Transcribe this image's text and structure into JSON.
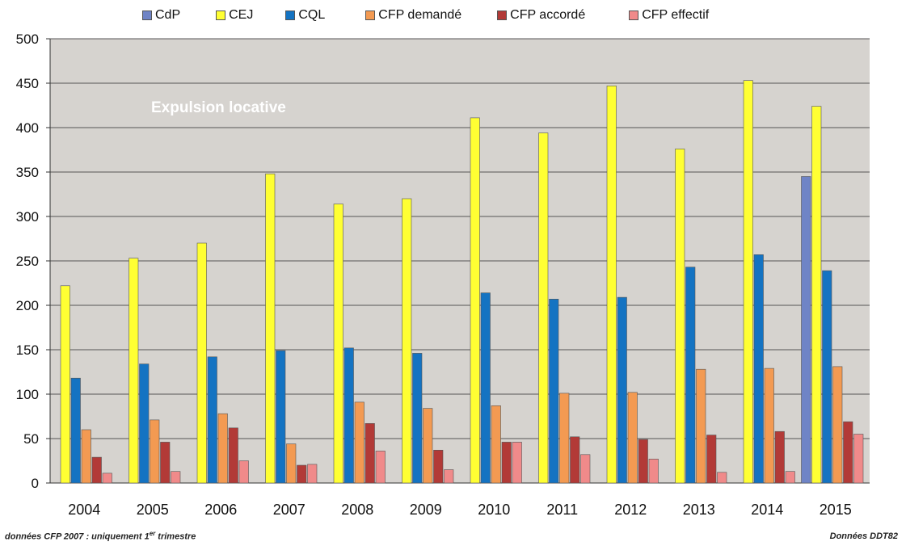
{
  "chart_data": {
    "type": "bar",
    "title": "",
    "annotation": "Expulsion locative",
    "xlabel": "",
    "ylabel": "",
    "ylim": [
      0,
      500
    ],
    "yticks": [
      0,
      50,
      100,
      150,
      200,
      250,
      300,
      350,
      400,
      450,
      500
    ],
    "grid": true,
    "legend_position": "top",
    "categories": [
      "2004",
      "2005",
      "2006",
      "2007",
      "2008",
      "2009",
      "2010",
      "2011",
      "2012",
      "2013",
      "2014",
      "2015"
    ],
    "series": [
      {
        "name": "CdP",
        "color": "#6f84c6",
        "values": [
          null,
          null,
          null,
          null,
          null,
          null,
          null,
          null,
          null,
          null,
          null,
          345
        ]
      },
      {
        "name": "CEJ",
        "color": "#ffff33",
        "values": [
          222,
          253,
          270,
          348,
          314,
          320,
          411,
          394,
          447,
          376,
          453,
          424
        ]
      },
      {
        "name": "CQL",
        "color": "#1473c2",
        "values": [
          118,
          134,
          142,
          149,
          152,
          146,
          214,
          207,
          209,
          243,
          257,
          239
        ]
      },
      {
        "name": "CFP demandé",
        "color": "#f39a52",
        "values": [
          60,
          71,
          78,
          44,
          91,
          84,
          87,
          101,
          102,
          128,
          129,
          131
        ]
      },
      {
        "name": "CFP accordé",
        "color": "#b23a37",
        "values": [
          29,
          46,
          62,
          20,
          67,
          37,
          46,
          52,
          49,
          54,
          58,
          69
        ]
      },
      {
        "name": "CFP effectif",
        "color": "#f08a8a",
        "values": [
          11,
          13,
          25,
          21,
          36,
          15,
          46,
          32,
          27,
          12,
          13,
          55
        ]
      }
    ]
  },
  "footnote": {
    "prefix": "données CFP 2007 : uniquement 1",
    "sup": "er",
    "suffix": " trimestre"
  },
  "source_text": "Données DDT82",
  "colors": {
    "plot_background": "#d6d3cf",
    "gridline": "#555555"
  }
}
